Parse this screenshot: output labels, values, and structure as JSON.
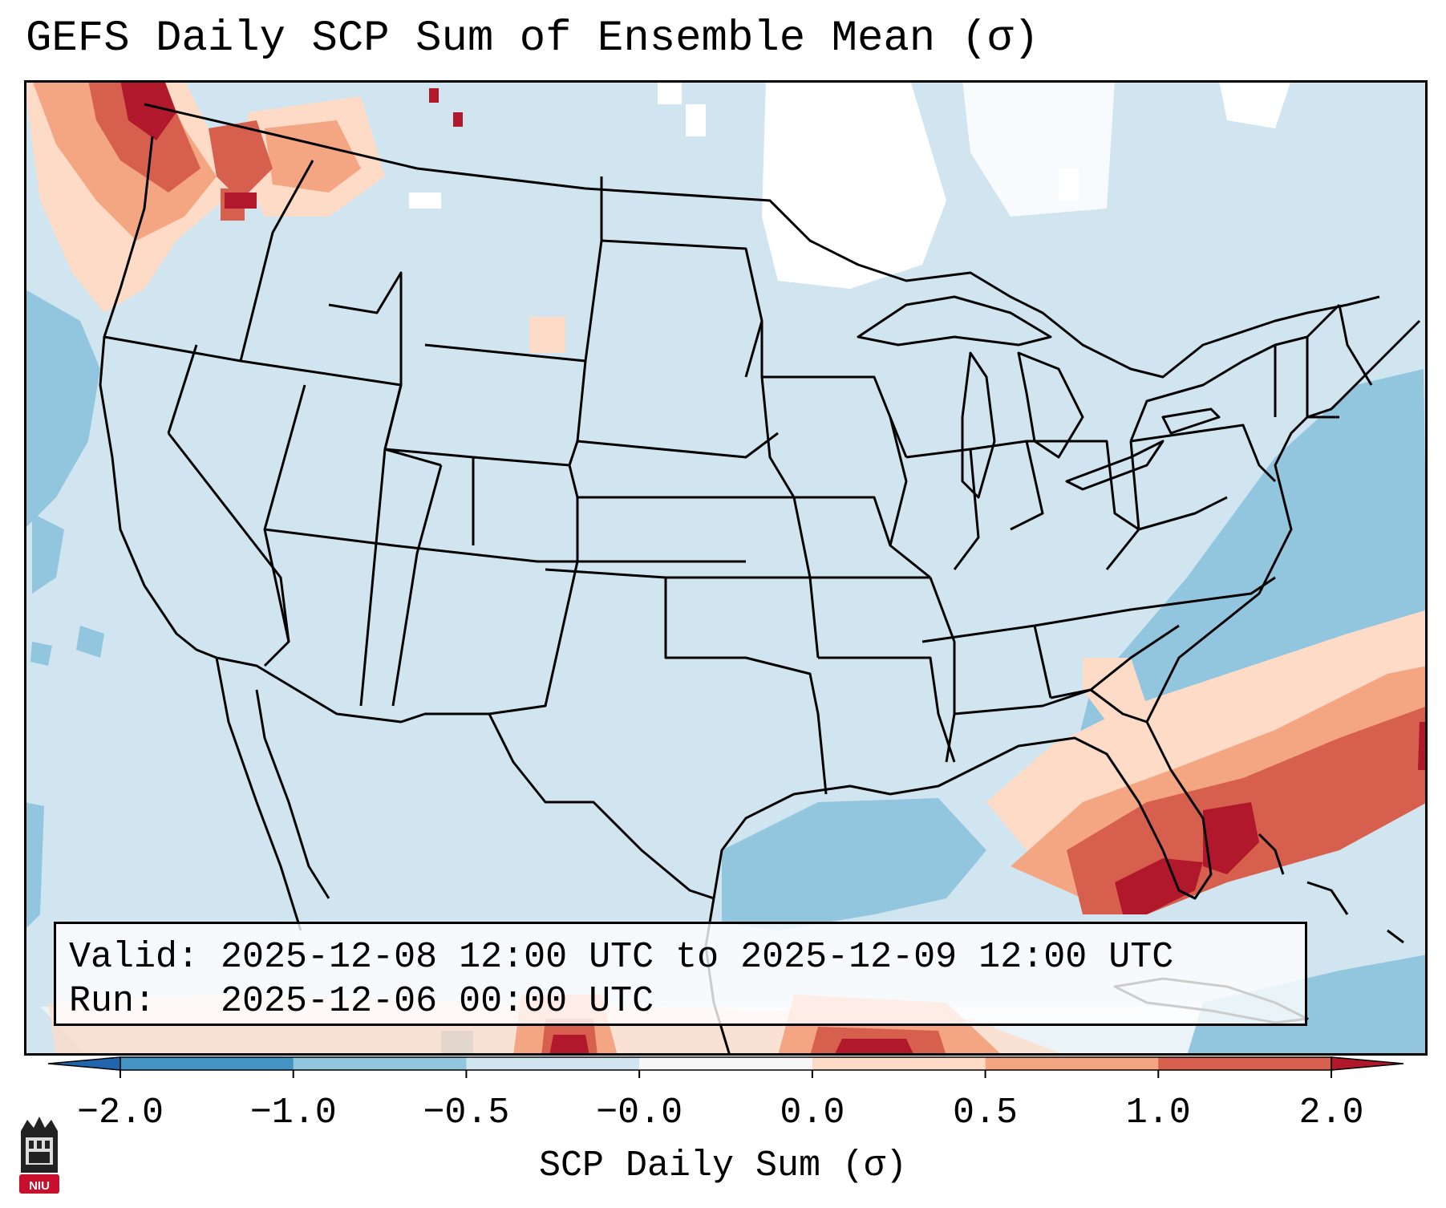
{
  "title": "GEFS Daily SCP Sum of Ensemble Mean (σ)",
  "info": {
    "valid_line": "Valid: 2025-12-08 12:00 UTC to 2025-12-09 12:00 UTC",
    "run_line": "Run:   2025-12-06 00:00 UTC"
  },
  "colorbar": {
    "label": "SCP Daily Sum (σ)",
    "ticks": [
      "−2.0",
      "−1.0",
      "−0.5",
      "−0.0",
      "0.0",
      "0.5",
      "1.0",
      "2.0"
    ],
    "bin_colors": [
      "#4393c3",
      "#92c5de",
      "#d1e5f0",
      "#f7f7f7",
      "#fddbc7",
      "#f4a582",
      "#d6604d"
    ],
    "under_color": "#2166ac",
    "over_color": "#b2182b"
  },
  "colors": {
    "background_field": "#d1e5f0",
    "border_line": "#000000"
  },
  "logo": {
    "text": "NIU",
    "color": "#c8102e"
  }
}
